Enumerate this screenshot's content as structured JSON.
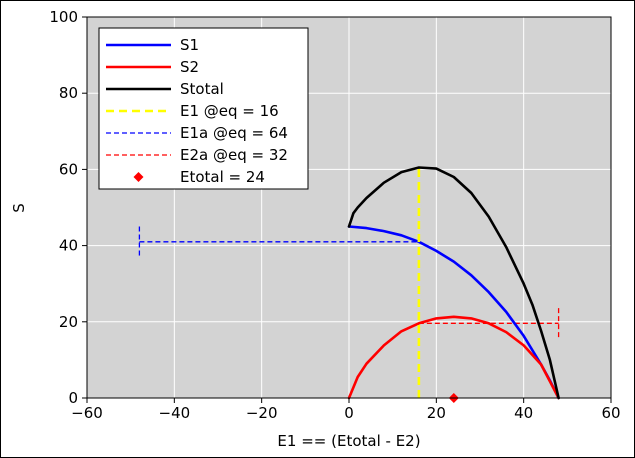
{
  "chart_data": {
    "type": "line",
    "title": "",
    "xlabel": "E1 == (Etotal - E2)",
    "ylabel": "S",
    "xlim": [
      -60,
      60
    ],
    "ylim": [
      0,
      100
    ],
    "xticks": [
      -60,
      -40,
      -20,
      0,
      20,
      40,
      60
    ],
    "yticks": [
      0,
      20,
      40,
      60,
      80,
      100
    ],
    "xtick_labels": [
      "−60",
      "−40",
      "−20",
      "0",
      "20",
      "40",
      "60"
    ],
    "ytick_labels": [
      "0",
      "20",
      "40",
      "60",
      "80",
      "100"
    ],
    "grid": true,
    "legend_position": "upper-left",
    "colors": {
      "S1": "#0000ff",
      "S2": "#ff0000",
      "Stotal": "#000000",
      "E1_eq": "#ffff00",
      "E1a_eq": "#0000ff",
      "E2a_eq": "#ff0000",
      "Etotal": "#ff0000",
      "plot_bg": "#d3d3d3",
      "grid": "#ffffff"
    },
    "series": [
      {
        "name": "S1",
        "key": "S1",
        "x": [
          0,
          4,
          8,
          12,
          16,
          20,
          24,
          28,
          32,
          36,
          40,
          44,
          46,
          48
        ],
        "y": [
          45,
          44.6,
          43.8,
          42.7,
          41.0,
          38.6,
          35.8,
          32.2,
          27.8,
          22.6,
          16.3,
          8.8,
          4.6,
          0
        ]
      },
      {
        "name": "S2",
        "key": "S2",
        "x": [
          0,
          2,
          4,
          8,
          12,
          16,
          20,
          24,
          28,
          32,
          36,
          40,
          44,
          48
        ],
        "y": [
          0,
          5.5,
          9.0,
          13.8,
          17.5,
          19.6,
          20.9,
          21.3,
          20.9,
          19.6,
          17.3,
          13.8,
          8.8,
          0
        ]
      },
      {
        "name": "Stotal",
        "key": "Stotal",
        "x": [
          0,
          1,
          2,
          4,
          8,
          12,
          16,
          20,
          24,
          28,
          32,
          36,
          40,
          42,
          44,
          46,
          48
        ],
        "y": [
          45,
          48.5,
          50,
          52.5,
          56.5,
          59.3,
          60.5,
          60.2,
          58.0,
          53.8,
          47.6,
          39.6,
          30.0,
          24.5,
          17.6,
          10.0,
          0
        ]
      }
    ],
    "legend": [
      {
        "label": "S1",
        "key": "S1",
        "style": "solid"
      },
      {
        "label": "S2",
        "key": "S2",
        "style": "solid"
      },
      {
        "label": "Stotal",
        "key": "Stotal",
        "style": "solid"
      },
      {
        "label": "E1 @eq = 16",
        "key": "E1_eq",
        "style": "dashed-thick"
      },
      {
        "label": "E1a @eq = 64",
        "key": "E1a_eq",
        "style": "dashed"
      },
      {
        "label": "E2a @eq = 32",
        "key": "E2a_eq",
        "style": "dashed"
      },
      {
        "label": "Etotal = 24",
        "key": "Etotal",
        "style": "marker"
      }
    ],
    "annotations": {
      "E1_eq_line": {
        "x": 16,
        "y_from": 0,
        "y_to": 60.5
      },
      "E1a_line": {
        "x_from": -48,
        "x_to": 16,
        "y": 41.0,
        "cap_half_height": 4
      },
      "E2a_line": {
        "x_from": 16,
        "x_to": 48,
        "y": 19.6,
        "cap_half_height": 4
      },
      "Etotal_marker": {
        "x": 24,
        "y": 0
      }
    }
  }
}
